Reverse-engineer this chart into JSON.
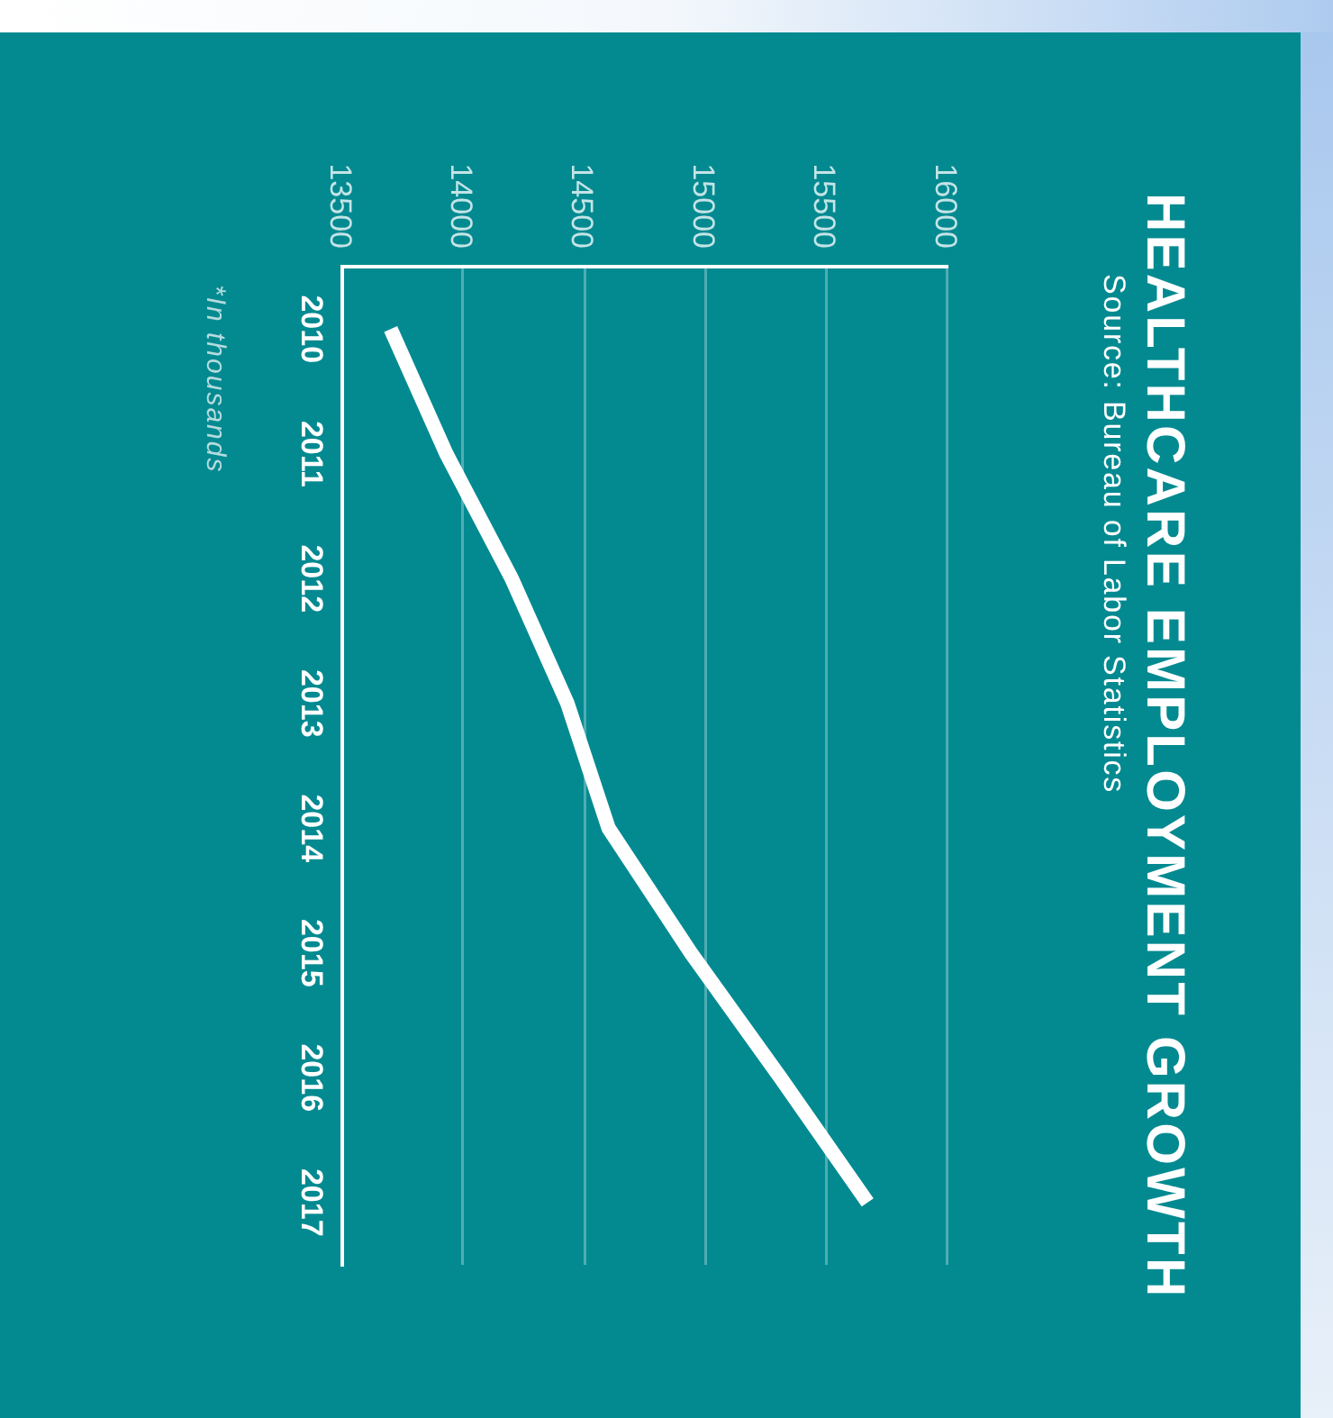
{
  "chart_data": {
    "type": "line",
    "orientation": "horizontal",
    "title": "HEALTHCARE EMPLOYMENT GROWTH",
    "subtitle": "Source: Bureau of Labor Statistics",
    "annotations": [
      "*In thousands"
    ],
    "categories": [
      "2010",
      "2011",
      "2012",
      "2013",
      "2014",
      "2015",
      "2016",
      "2017"
    ],
    "values": [
      13700,
      13930,
      14200,
      14430,
      14600,
      14940,
      15310,
      15670
    ],
    "color": "#ffffff",
    "xlim": [
      13500,
      16000
    ],
    "xticks": [
      13500,
      14000,
      14500,
      15000,
      15500,
      16000
    ],
    "grid": "x",
    "legend": false,
    "marker": "none",
    "line_style": "solid"
  }
}
